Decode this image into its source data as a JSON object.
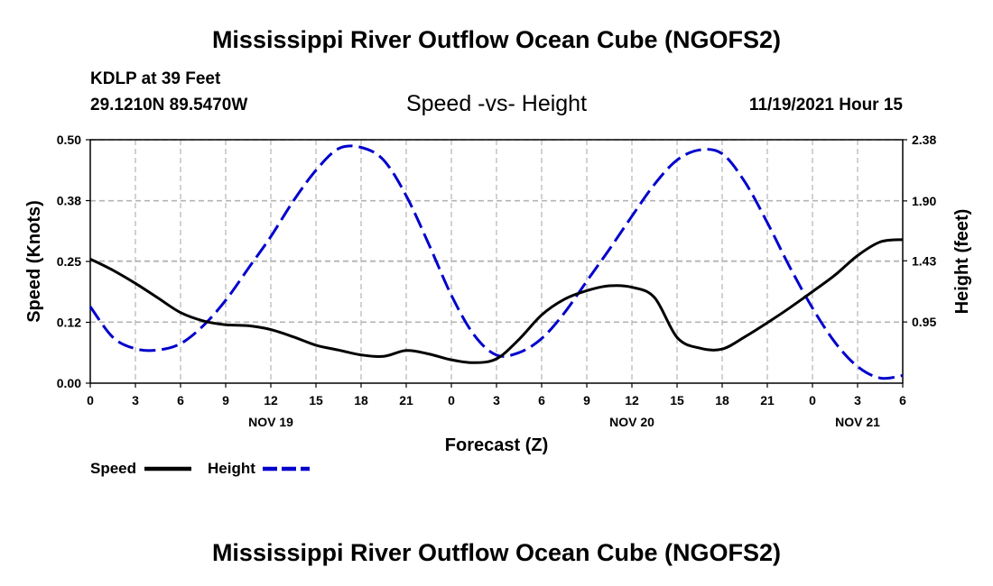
{
  "page": {
    "title": "Mississippi River Outflow Ocean Cube (NGOFS2)",
    "footer_title": "Mississippi River Outflow Ocean Cube (NGOFS2)",
    "station": "KDLP at 39 Feet",
    "coords": "29.1210N  89.5470W",
    "subtitle": "Speed -vs- Height",
    "timestamp": "11/19/2021 Hour 15"
  },
  "chart_data": {
    "type": "line",
    "title": "Speed -vs- Height",
    "xlabel": "Forecast (Z)",
    "ylabel": "Speed (Knots)",
    "y2label": "Height (feet)",
    "xlim": [
      0,
      54
    ],
    "ylim": [
      0,
      0.5
    ],
    "y2lim": [
      0.47,
      2.38
    ],
    "x_tick_values": [
      0,
      3,
      6,
      9,
      12,
      15,
      18,
      21,
      24,
      27,
      30,
      33,
      36,
      39,
      42,
      45,
      48,
      51,
      54
    ],
    "x_tick_labels": [
      "0",
      "3",
      "6",
      "9",
      "12",
      "15",
      "18",
      "21",
      "0",
      "3",
      "6",
      "9",
      "12",
      "15",
      "18",
      "21",
      "0",
      "3",
      "6"
    ],
    "date_labels": [
      {
        "x": 12,
        "label": "NOV 19"
      },
      {
        "x": 36,
        "label": "NOV 20"
      },
      {
        "x": 51,
        "label": "NOV 21"
      }
    ],
    "y_tick_values": [
      0,
      0.125,
      0.25,
      0.375,
      0.5
    ],
    "y_tick_labels": [
      "0.00",
      "0.12",
      "0.25",
      "0.38",
      "0.50"
    ],
    "y2_tick_values": [
      0.95,
      1.43,
      1.9,
      2.38
    ],
    "y2_tick_labels": [
      "0.95",
      "1.43",
      "1.90",
      "2.38"
    ],
    "grid": true,
    "legend_position": "bottom-left",
    "series": [
      {
        "name": "Speed",
        "axis": "left",
        "color": "#000000",
        "style": "solid",
        "x": [
          0,
          1.5,
          3,
          4.5,
          6,
          7.5,
          9,
          10.5,
          12,
          13.5,
          15,
          16.5,
          18,
          19.5,
          21,
          22.5,
          24,
          25.5,
          27,
          28.5,
          30,
          31.5,
          33,
          34.5,
          36,
          37.5,
          39,
          40.5,
          42,
          43.5,
          45,
          46.5,
          48,
          49.5,
          51,
          52.5,
          54
        ],
        "values": [
          0.255,
          0.232,
          0.205,
          0.175,
          0.145,
          0.128,
          0.12,
          0.118,
          0.11,
          0.095,
          0.078,
          0.068,
          0.058,
          0.055,
          0.067,
          0.06,
          0.048,
          0.042,
          0.05,
          0.09,
          0.14,
          0.172,
          0.19,
          0.2,
          0.197,
          0.176,
          0.094,
          0.072,
          0.07,
          0.095,
          0.124,
          0.155,
          0.188,
          0.222,
          0.262,
          0.29,
          0.295
        ]
      },
      {
        "name": "Height",
        "axis": "right",
        "color": "#0000cc",
        "style": "dashed",
        "x": [
          0,
          1.5,
          3,
          4.5,
          6,
          7.5,
          9,
          10.5,
          12,
          13.5,
          15,
          16.5,
          18,
          19.5,
          21,
          22.5,
          24,
          25.5,
          27,
          28.5,
          30,
          31.5,
          33,
          34.5,
          36,
          37.5,
          39,
          40.5,
          42,
          43.5,
          45,
          46.5,
          48,
          49.5,
          51,
          52.5,
          54
        ],
        "values": [
          1.07,
          0.83,
          0.74,
          0.73,
          0.78,
          0.92,
          1.12,
          1.37,
          1.62,
          1.9,
          2.14,
          2.31,
          2.32,
          2.22,
          1.94,
          1.56,
          1.16,
          0.85,
          0.69,
          0.71,
          0.82,
          1.02,
          1.27,
          1.52,
          1.78,
          2.03,
          2.22,
          2.3,
          2.27,
          2.05,
          1.73,
          1.38,
          1.06,
          0.79,
          0.6,
          0.51,
          0.53
        ]
      }
    ]
  }
}
